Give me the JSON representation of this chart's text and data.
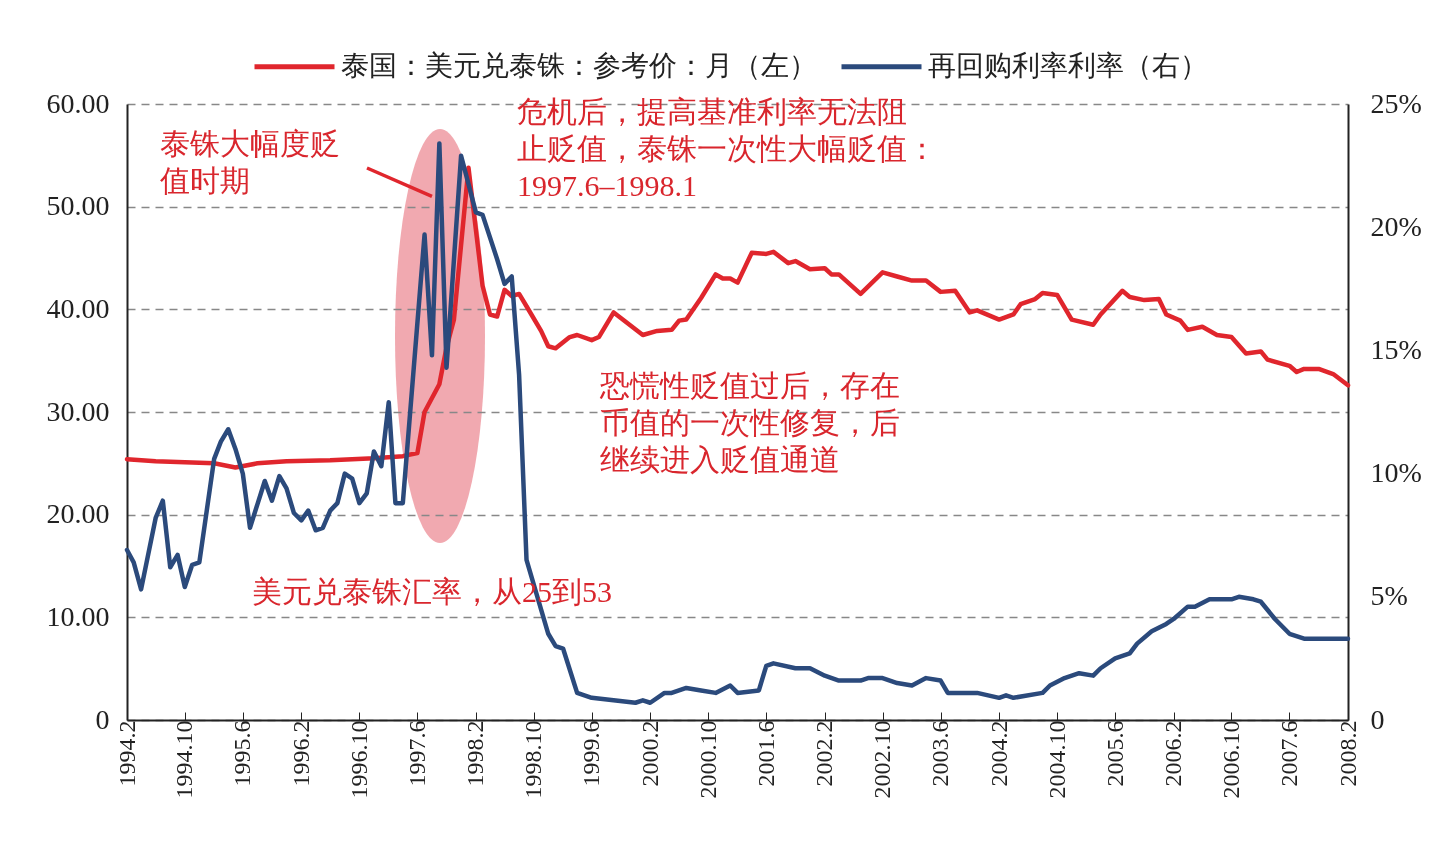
{
  "chart_data": {
    "type": "line",
    "annotations": [
      {
        "text": "泰铢大幅度贬值时期",
        "x": "1997-08",
        "y": 51
      },
      "危机后，提高基准利率无法阻止贬值，泰铢一次性大幅贬值：1997.6–1998.1",
      "恐慌性贬值过后，存在币值的一次性修复，后继续进入贬值通道",
      "美元兑泰铢汇率，从25到53"
    ],
    "series": [
      {
        "name": "泰国：美元兑泰铢：参考价：月（左）",
        "color": "#e0262d",
        "x": [
          "1994-02",
          "1994-06",
          "1994-10",
          "1995-02",
          "1995-05",
          "1995-08",
          "1995-12",
          "1996-06",
          "1996-12",
          "1997-04",
          "1997-06",
          "1997-07",
          "1997-09",
          "1997-10",
          "1997-11",
          "1998-01",
          "1998-03",
          "1998-04",
          "1998-05",
          "1998-06",
          "1998-07",
          "1998-08",
          "1998-09",
          "1998-11",
          "1998-12",
          "1999-01",
          "1999-03",
          "1999-04",
          "1999-06",
          "1999-07",
          "1999-09",
          "2000-01",
          "2000-03",
          "2000-05",
          "2000-06",
          "2000-07",
          "2000-09",
          "2000-11",
          "2000-12",
          "2001-01",
          "2001-02",
          "2001-04",
          "2001-06",
          "2001-07",
          "2001-09",
          "2001-10",
          "2001-12",
          "2002-02",
          "2002-03",
          "2002-04",
          "2002-07",
          "2002-10",
          "2002-12",
          "2003-02",
          "2003-04",
          "2003-06",
          "2003-08",
          "2003-10",
          "2003-11",
          "2004-02",
          "2004-04",
          "2004-05",
          "2004-07",
          "2004-08",
          "2004-10",
          "2004-12",
          "2005-03",
          "2005-04",
          "2005-07",
          "2005-08",
          "2005-10",
          "2005-12",
          "2006-01",
          "2006-03",
          "2006-04",
          "2006-06",
          "2006-08",
          "2006-10",
          "2006-12",
          "2007-02",
          "2007-03",
          "2007-06",
          "2007-07",
          "2007-08",
          "2007-10",
          "2007-12",
          "2008-02"
        ],
        "values": [
          25.4,
          25.2,
          25.1,
          25.0,
          24.6,
          25.0,
          25.2,
          25.3,
          25.5,
          25.7,
          26.0,
          30.0,
          32.7,
          36.3,
          39.0,
          53.8,
          42.3,
          39.5,
          39.3,
          41.9,
          41.3,
          41.5,
          40.3,
          37.9,
          36.4,
          36.2,
          37.3,
          37.5,
          37.0,
          37.3,
          39.7,
          37.5,
          37.9,
          38.0,
          38.9,
          39.0,
          41.1,
          43.4,
          43.0,
          43.0,
          42.6,
          45.5,
          45.4,
          45.6,
          44.5,
          44.7,
          43.9,
          44.0,
          43.4,
          43.4,
          41.5,
          43.6,
          43.2,
          42.8,
          42.8,
          41.7,
          41.8,
          39.7,
          39.9,
          39.0,
          39.5,
          40.5,
          41.0,
          41.6,
          41.4,
          39.0,
          38.5,
          39.5,
          41.8,
          41.2,
          40.9,
          41.0,
          39.5,
          38.9,
          38.0,
          38.3,
          37.5,
          37.3,
          35.7,
          35.9,
          35.1,
          34.5,
          33.9,
          34.2,
          34.2,
          33.7,
          32.6
        ]
      },
      {
        "name": "再回购利率利率（右）",
        "color": "#2b4a7c",
        "axis": "y2",
        "x": [
          "1994-02",
          "1994-03",
          "1994-04",
          "1994-06",
          "1994-07",
          "1994-08",
          "1994-09",
          "1994-10",
          "1994-11",
          "1994-12",
          "1995-02",
          "1995-03",
          "1995-04",
          "1995-05",
          "1995-06",
          "1995-07",
          "1995-09",
          "1995-10",
          "1995-11",
          "1995-12",
          "1996-01",
          "1996-02",
          "1996-03",
          "1996-04",
          "1996-05",
          "1996-06",
          "1996-07",
          "1996-08",
          "1996-09",
          "1996-10",
          "1996-11",
          "1996-12",
          "1997-01",
          "1997-02",
          "1997-03",
          "1997-04",
          "1997-07",
          "1997-08",
          "1997-09",
          "1997-10",
          "1997-12",
          "1998-02",
          "1998-03",
          "1998-05",
          "1998-06",
          "1998-07",
          "1998-08",
          "1998-09",
          "1998-12",
          "1999-01",
          "1999-02",
          "1999-04",
          "1999-06",
          "1999-12",
          "2000-01",
          "2000-02",
          "2000-04",
          "2000-05",
          "2000-07",
          "2000-09",
          "2000-11",
          "2001-01",
          "2001-02",
          "2001-05",
          "2001-06",
          "2001-07",
          "2001-10",
          "2001-12",
          "2002-02",
          "2002-04",
          "2002-07",
          "2002-08",
          "2002-10",
          "2002-12",
          "2003-02",
          "2003-04",
          "2003-06",
          "2003-07",
          "2003-11",
          "2004-02",
          "2004-03",
          "2004-04",
          "2004-08",
          "2004-09",
          "2004-11",
          "2005-01",
          "2005-03",
          "2005-04",
          "2005-06",
          "2005-08",
          "2005-09",
          "2005-11",
          "2006-01",
          "2006-02",
          "2006-04",
          "2006-05",
          "2006-07",
          "2006-10",
          "2006-11",
          "2007-01",
          "2007-02",
          "2007-04",
          "2007-06",
          "2007-08",
          "2008-02"
        ],
        "values": [
          6.9,
          6.4,
          5.3,
          8.2,
          8.9,
          6.2,
          6.7,
          5.4,
          6.3,
          6.4,
          10.6,
          11.3,
          11.8,
          11.0,
          10.0,
          7.8,
          9.7,
          8.9,
          9.9,
          9.4,
          8.4,
          8.1,
          8.5,
          7.7,
          7.8,
          8.5,
          8.8,
          10.0,
          9.8,
          8.8,
          9.2,
          10.9,
          10.3,
          12.9,
          8.8,
          8.8,
          19.7,
          14.8,
          23.4,
          14.3,
          22.9,
          20.6,
          20.5,
          18.7,
          17.7,
          18.0,
          14.0,
          6.5,
          3.5,
          3.0,
          2.9,
          1.1,
          0.9,
          0.7,
          0.8,
          0.7,
          1.1,
          1.1,
          1.3,
          1.2,
          1.1,
          1.4,
          1.1,
          1.2,
          2.2,
          2.3,
          2.1,
          2.1,
          1.8,
          1.6,
          1.6,
          1.7,
          1.7,
          1.5,
          1.4,
          1.7,
          1.6,
          1.1,
          1.1,
          0.9,
          1.0,
          0.9,
          1.1,
          1.4,
          1.7,
          1.9,
          1.8,
          2.1,
          2.5,
          2.7,
          3.1,
          3.6,
          3.9,
          4.1,
          4.6,
          4.6,
          4.9,
          4.9,
          5.0,
          4.9,
          4.8,
          4.1,
          3.5,
          3.3,
          3.3
        ]
      }
    ],
    "xlim": [
      "1994-02",
      "2008-02"
    ],
    "xticks": [
      {
        "value": "1994-02",
        "label": "1994.2"
      },
      {
        "value": "1994-10",
        "label": "1994.10"
      },
      {
        "value": "1995-06",
        "label": "1995.6"
      },
      {
        "value": "1996-02",
        "label": "1996.2"
      },
      {
        "value": "1996-10",
        "label": "1996.10"
      },
      {
        "value": "1997-06",
        "label": "1997.6"
      },
      {
        "value": "1998-02",
        "label": "1998.2"
      },
      {
        "value": "1998-10",
        "label": "1998.10"
      },
      {
        "value": "1999-06",
        "label": "1999.6"
      },
      {
        "value": "2000-02",
        "label": "2000.2"
      },
      {
        "value": "2000-10",
        "label": "2000.10"
      },
      {
        "value": "2001-06",
        "label": "2001.6"
      },
      {
        "value": "2002-02",
        "label": "2002.2"
      },
      {
        "value": "2002-10",
        "label": "2002.10"
      },
      {
        "value": "2003-06",
        "label": "2003.6"
      },
      {
        "value": "2004-02",
        "label": "2004.2"
      },
      {
        "value": "2004-10",
        "label": "2004.10"
      },
      {
        "value": "2005-06",
        "label": "2005.6"
      },
      {
        "value": "2006-02",
        "label": "2006.2"
      },
      {
        "value": "2006-10",
        "label": "2006.10"
      },
      {
        "value": "2007-06",
        "label": "2007.6"
      },
      {
        "value": "2008-02",
        "label": "2008.2"
      }
    ],
    "ylim": [
      0,
      60
    ],
    "yticks": [
      {
        "value": 0,
        "label": "0"
      },
      {
        "value": 10,
        "label": "10.00"
      },
      {
        "value": 20,
        "label": "20.00"
      },
      {
        "value": 30,
        "label": "30.00"
      },
      {
        "value": 40,
        "label": "40.00"
      },
      {
        "value": 50,
        "label": "50.00"
      },
      {
        "value": 60,
        "label": "60.00"
      }
    ],
    "y2lim": [
      0,
      25
    ],
    "y2ticks": [
      {
        "value": 0,
        "label": "0"
      },
      {
        "value": 5,
        "label": "5%"
      },
      {
        "value": 10,
        "label": "10%"
      },
      {
        "value": 15,
        "label": "15%"
      },
      {
        "value": 20,
        "label": "20%"
      },
      {
        "value": 25,
        "label": "25%"
      }
    ],
    "grid": "y",
    "legend": "top"
  }
}
